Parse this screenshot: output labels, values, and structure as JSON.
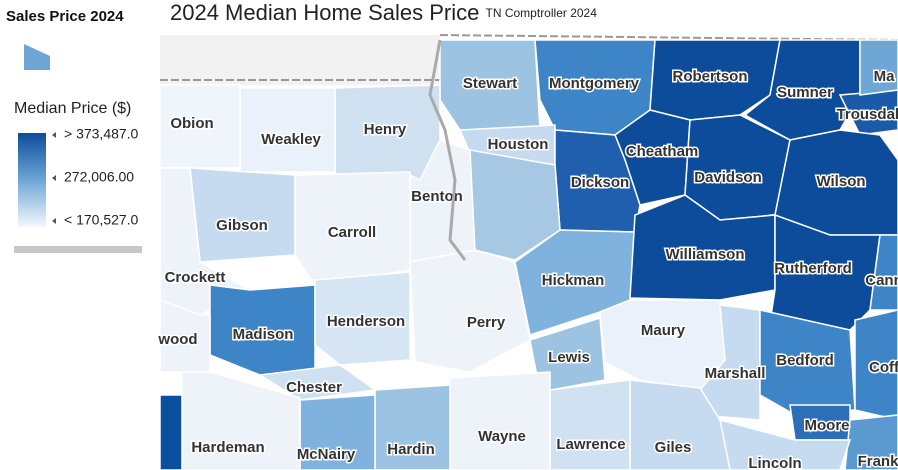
{
  "legend": {
    "title": "Sales Price 2024",
    "subtitle": "Median Price ($)",
    "labels": [
      "> 373,487.0",
      "272,006.00",
      "< 170,527.0"
    ]
  },
  "map": {
    "title": "2024 Median Home Sales Price",
    "subtitle": "TN Comptroller 2024",
    "counties": [
      {
        "name": "Stewart",
        "color": "#9cc3e2"
      },
      {
        "name": "Montgomery",
        "color": "#3d85c6"
      },
      {
        "name": "Robertson",
        "color": "#0c4c9b"
      },
      {
        "name": "Sumner",
        "color": "#0c4c9b"
      },
      {
        "name": "Trousdale",
        "color": "#1a5aa8"
      },
      {
        "name": "Ma",
        "color": "#6ea6d6"
      },
      {
        "name": "Houston",
        "color": "#c6dbef"
      },
      {
        "name": "Henry",
        "color": "#cfe0f0"
      },
      {
        "name": "Weakley",
        "color": "#eaf1fa"
      },
      {
        "name": "Obion",
        "color": "#f0f4fb"
      },
      {
        "name": "Cheatham",
        "color": "#0c4c9b"
      },
      {
        "name": "Dickson",
        "color": "#1f5fad"
      },
      {
        "name": "Davidson",
        "color": "#0c4c9b"
      },
      {
        "name": "Wilson",
        "color": "#0c4c9b"
      },
      {
        "name": "Benton",
        "color": "#eef3fa"
      },
      {
        "name": null,
        "color": "#a6c8e2"
      },
      {
        "name": "Carroll",
        "color": "#eef3fa"
      },
      {
        "name": "Gibson",
        "color": "#c6dbef"
      },
      {
        "name": "Crockett",
        "color": "#eef3fa"
      },
      {
        "name": "Madison",
        "color": "#3d85c6"
      },
      {
        "name": "wood",
        "color": "#eef3fa"
      },
      {
        "name": "Henderson",
        "color": "#d6e5f3"
      },
      {
        "name": "Perry",
        "color": "#eef3fa"
      },
      {
        "name": "Hickman",
        "color": "#7fb2dc"
      },
      {
        "name": "Maury",
        "color": "#eaf1fa"
      },
      {
        "name": "Williamson",
        "color": "#0c4c9b"
      },
      {
        "name": "Rutherford",
        "color": "#0c4c9b"
      },
      {
        "name": "Cann",
        "color": "#3d85c6"
      },
      {
        "name": "Lewis",
        "color": "#9cc3e2"
      },
      {
        "name": "Marshall",
        "color": "#c6dbef"
      },
      {
        "name": "Bedford",
        "color": "#3d85c6"
      },
      {
        "name": "Coff",
        "color": "#3d85c6"
      },
      {
        "name": "Moore",
        "color": "#2c6fb8"
      },
      {
        "name": "Frank",
        "color": "#5a9ad0"
      },
      {
        "name": "Lincoln",
        "color": "#c6dbef"
      },
      {
        "name": "Giles",
        "color": "#c6dbef"
      },
      {
        "name": "Lawrence",
        "color": "#d0e1f1"
      },
      {
        "name": "Wayne",
        "color": "#eef3fa"
      },
      {
        "name": "Hardin",
        "color": "#9cc3e2"
      },
      {
        "name": "McNairy",
        "color": "#7fb2dc"
      },
      {
        "name": "Chester",
        "color": "#cfe0f0"
      },
      {
        "name": "Hardeman",
        "color": "#eef3fa"
      },
      {
        "name": null,
        "color": "#0b4f9f"
      }
    ]
  }
}
